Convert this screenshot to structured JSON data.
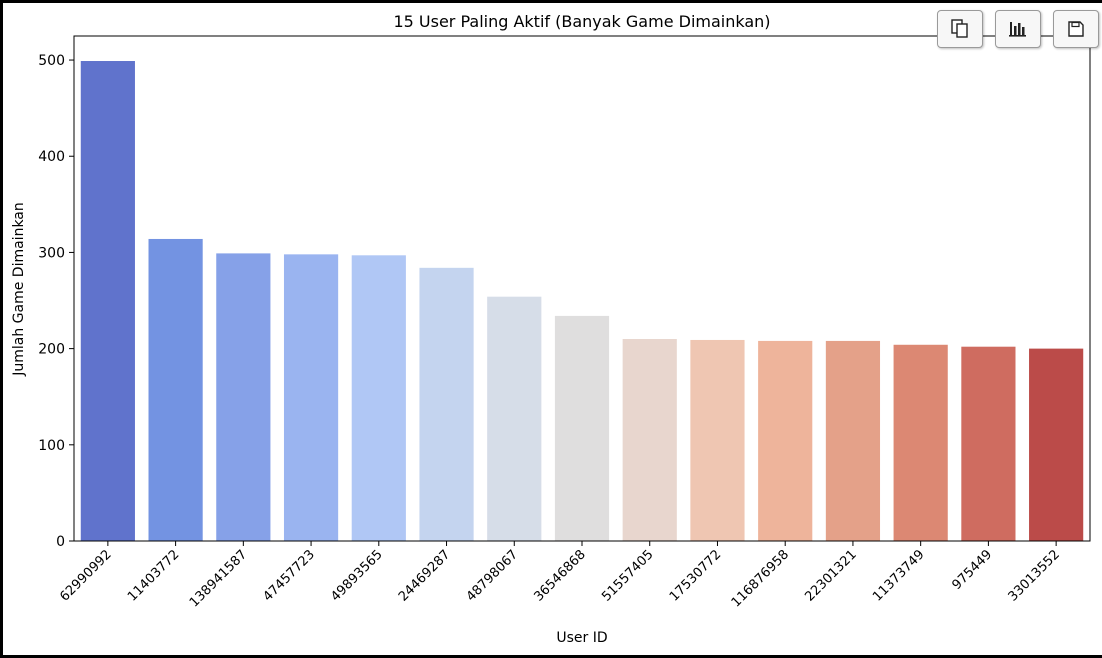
{
  "toolbar": {
    "buttons": [
      {
        "icon": "copy-icon"
      },
      {
        "icon": "bar-chart-icon"
      },
      {
        "icon": "save-icon"
      }
    ]
  },
  "chart_data": {
    "type": "bar",
    "title": "15 User Paling Aktif (Banyak Game Dimainkan)",
    "xlabel": "User ID",
    "ylabel": "Jumlah Game Dimainkan",
    "ylim": [
      0,
      525
    ],
    "yticks": [
      0,
      100,
      200,
      300,
      400,
      500
    ],
    "grid": false,
    "categories": [
      "62990992",
      "11403772",
      "138941587",
      "47457723",
      "49893565",
      "24469287",
      "48798067",
      "36546868",
      "51557405",
      "17530772",
      "116876958",
      "22301321",
      "11373749",
      "975449",
      "33013552"
    ],
    "values": [
      499,
      314,
      299,
      298,
      297,
      284,
      254,
      234,
      210,
      209,
      208,
      208,
      204,
      202,
      200
    ],
    "colors": [
      "#6073CC",
      "#7393E2",
      "#86A1E8",
      "#9AB4F0",
      "#B0C7F5",
      "#C4D4EF",
      "#D6DDE8",
      "#DFDEDE",
      "#E8D6CE",
      "#EFC6B2",
      "#EEB49B",
      "#E4A189",
      "#DC8873",
      "#CF6C60",
      "#BB4B49"
    ]
  }
}
